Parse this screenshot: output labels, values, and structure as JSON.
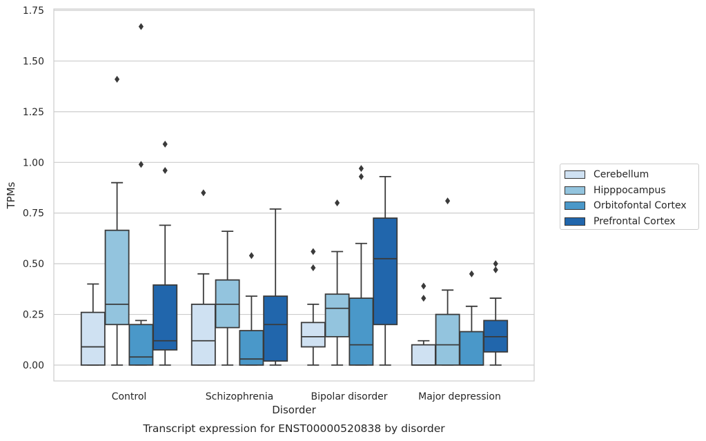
{
  "chart_data": {
    "type": "box",
    "title": "Transcript expression for ENST00000520838 by disorder",
    "xlabel": "Disorder",
    "ylabel": "TPMs",
    "ylim": [
      -0.08,
      1.76
    ],
    "yticks": [
      "0.00",
      "0.25",
      "0.50",
      "0.75",
      "1.00",
      "1.25",
      "1.50",
      "1.75"
    ],
    "grid": "horizontal",
    "legend_position": "right",
    "categories": [
      "Control",
      "Schizophrenia",
      "Bipolar disorder",
      "Major depression"
    ],
    "series": [
      {
        "name": "Cerebellum",
        "color": "#cfe1f2",
        "boxes": [
          {
            "whislo": 0.0,
            "q1": 0.0,
            "med": 0.09,
            "q3": 0.26,
            "whishi": 0.4,
            "fliers": []
          },
          {
            "whislo": 0.0,
            "q1": 0.0,
            "med": 0.12,
            "q3": 0.3,
            "whishi": 0.45,
            "fliers": [
              0.85
            ]
          },
          {
            "whislo": 0.0,
            "q1": 0.09,
            "med": 0.14,
            "q3": 0.21,
            "whishi": 0.3,
            "fliers": [
              0.48,
              0.56
            ]
          },
          {
            "whislo": 0.0,
            "q1": 0.0,
            "med": 0.0,
            "q3": 0.1,
            "whishi": 0.12,
            "fliers": [
              0.33,
              0.39
            ]
          }
        ]
      },
      {
        "name": "Hipppocampus",
        "color": "#93c4de",
        "boxes": [
          {
            "whislo": 0.0,
            "q1": 0.2,
            "med": 0.3,
            "q3": 0.665,
            "whishi": 0.9,
            "fliers": [
              1.41
            ]
          },
          {
            "whislo": 0.0,
            "q1": 0.185,
            "med": 0.3,
            "q3": 0.42,
            "whishi": 0.66,
            "fliers": []
          },
          {
            "whislo": 0.0,
            "q1": 0.14,
            "med": 0.28,
            "q3": 0.35,
            "whishi": 0.56,
            "fliers": [
              0.8
            ]
          },
          {
            "whislo": 0.0,
            "q1": 0.0,
            "med": 0.1,
            "q3": 0.25,
            "whishi": 0.37,
            "fliers": [
              0.81
            ]
          }
        ]
      },
      {
        "name": "Orbitofontal Cortex",
        "color": "#4a98c9",
        "boxes": [
          {
            "whislo": 0.0,
            "q1": 0.0,
            "med": 0.04,
            "q3": 0.2,
            "whishi": 0.22,
            "fliers": [
              0.99,
              1.67
            ]
          },
          {
            "whislo": 0.0,
            "q1": 0.0,
            "med": 0.03,
            "q3": 0.17,
            "whishi": 0.34,
            "fliers": [
              0.54
            ]
          },
          {
            "whislo": 0.0,
            "q1": 0.0,
            "med": 0.1,
            "q3": 0.33,
            "whishi": 0.6,
            "fliers": [
              0.93,
              0.97
            ]
          },
          {
            "whislo": 0.0,
            "q1": 0.0,
            "med": 0.0,
            "q3": 0.165,
            "whishi": 0.29,
            "fliers": [
              0.45
            ]
          }
        ]
      },
      {
        "name": "Prefrontal Cortex",
        "color": "#2166ac",
        "boxes": [
          {
            "whislo": 0.0,
            "q1": 0.075,
            "med": 0.12,
            "q3": 0.395,
            "whishi": 0.69,
            "fliers": [
              0.96,
              1.09
            ]
          },
          {
            "whislo": 0.0,
            "q1": 0.02,
            "med": 0.2,
            "q3": 0.34,
            "whishi": 0.77,
            "fliers": []
          },
          {
            "whislo": 0.0,
            "q1": 0.2,
            "med": 0.525,
            "q3": 0.725,
            "whishi": 0.93,
            "fliers": []
          },
          {
            "whislo": 0.0,
            "q1": 0.065,
            "med": 0.14,
            "q3": 0.22,
            "whishi": 0.33,
            "fliers": [
              0.47,
              0.5
            ]
          }
        ]
      }
    ]
  }
}
